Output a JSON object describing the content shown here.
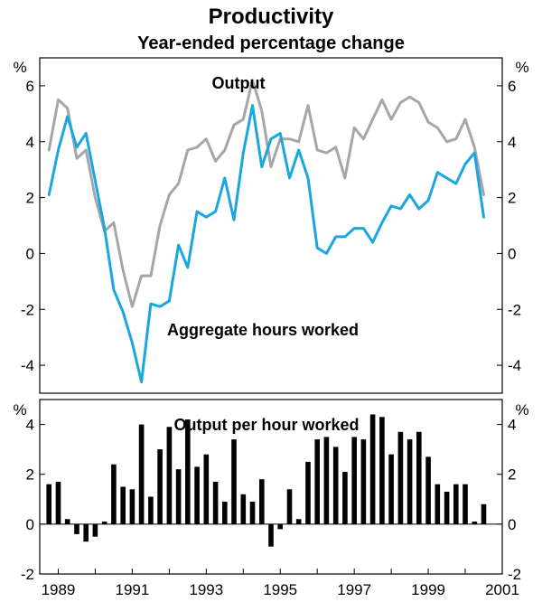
{
  "chart_data": [
    {
      "type": "line",
      "title": "Productivity",
      "subtitle": "Year-ended percentage change",
      "unit_label_left": "%",
      "unit_label_right": "%",
      "ylim": [
        -5,
        7
      ],
      "yticks": [
        -4,
        -2,
        0,
        2,
        4,
        6
      ],
      "ytick_labels": [
        "-4",
        "-2",
        "0",
        "2",
        "4",
        "6"
      ],
      "x_start": 1988.5,
      "x_end": 2001,
      "colors": {
        "output": "#a6a6a6",
        "hours": "#1aa7e0"
      },
      "series": [
        {
          "name": "Output",
          "x_start": 1988.75,
          "step": 0.25,
          "values": [
            3.7,
            5.5,
            5.2,
            3.4,
            3.7,
            2.0,
            0.8,
            1.1,
            -0.6,
            -1.9,
            -0.8,
            -0.8,
            1.0,
            2.1,
            2.5,
            3.7,
            3.8,
            4.1,
            3.3,
            3.7,
            4.6,
            4.8,
            6.2,
            5.1,
            3.1,
            4.1,
            4.1,
            4.0,
            5.3,
            3.7,
            3.6,
            3.8,
            2.7,
            4.5,
            4.1,
            4.8,
            5.5,
            4.8,
            5.4,
            5.6,
            5.4,
            4.7,
            4.5,
            4.0,
            4.1,
            4.8,
            3.8,
            2.1
          ]
        },
        {
          "name": "Aggregate hours worked",
          "x_start": 1988.75,
          "step": 0.25,
          "values": [
            2.1,
            3.7,
            4.9,
            3.8,
            4.3,
            2.6,
            0.9,
            -1.3,
            -2.1,
            -3.2,
            -4.6,
            -1.8,
            -1.9,
            -1.7,
            0.3,
            -0.5,
            1.5,
            1.3,
            1.5,
            2.7,
            1.2,
            3.6,
            5.3,
            3.1,
            4.1,
            4.3,
            2.7,
            3.7,
            2.7,
            0.2,
            0.0,
            0.6,
            0.6,
            0.9,
            0.9,
            0.4,
            1.1,
            1.7,
            1.6,
            2.1,
            1.6,
            1.9,
            2.9,
            2.7,
            2.5,
            3.2,
            3.6,
            1.3
          ]
        }
      ],
      "annotations": [
        "Output",
        "Aggregate hours worked"
      ]
    },
    {
      "type": "bar",
      "title": "Output per hour worked",
      "unit_label_left": "%",
      "unit_label_right": "%",
      "ylim": [
        -2,
        5
      ],
      "yticks": [
        -2,
        0,
        2,
        4
      ],
      "ytick_labels": [
        "-2",
        "0",
        "2",
        "4"
      ],
      "bar_color": "#000000",
      "series": [
        {
          "name": "Output per hour worked",
          "x_start": 1988.75,
          "step": 0.25,
          "values": [
            1.6,
            1.7,
            0.2,
            -0.4,
            -0.7,
            -0.5,
            0.1,
            2.4,
            1.5,
            1.4,
            4.0,
            1.1,
            3.0,
            3.9,
            2.2,
            4.2,
            2.3,
            2.8,
            1.7,
            0.9,
            3.4,
            1.2,
            0.9,
            1.8,
            -0.9,
            -0.2,
            1.4,
            0.2,
            2.5,
            3.4,
            3.5,
            3.1,
            2.1,
            3.5,
            3.4,
            4.4,
            4.3,
            2.8,
            3.7,
            3.4,
            3.7,
            2.7,
            1.6,
            1.3,
            1.6,
            1.6,
            0.1,
            0.8
          ]
        }
      ],
      "xticks": [
        1989,
        1991,
        1993,
        1995,
        1997,
        1999,
        2001
      ],
      "xtick_labels": [
        "1989",
        "1991",
        "1993",
        "1995",
        "1997",
        "1999",
        "2001"
      ]
    }
  ]
}
